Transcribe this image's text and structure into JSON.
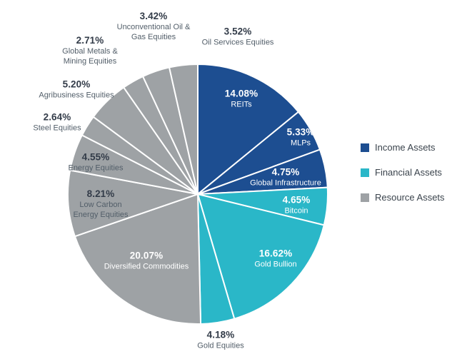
{
  "chart_data": {
    "type": "pie",
    "title": "",
    "legend_position": "right",
    "start_angle_deg": 0,
    "direction": "clockwise",
    "groups": [
      {
        "name": "Income Assets",
        "color": "#1d4e91"
      },
      {
        "name": "Financial Assets",
        "color": "#2ab7c8"
      },
      {
        "name": "Resource Assets",
        "color": "#9ea2a5"
      }
    ],
    "slices": [
      {
        "name": "REITs",
        "value": 14.08,
        "display": "14.08%",
        "group": "Income Assets"
      },
      {
        "name": "MLPs",
        "value": 5.33,
        "display": "5.33%",
        "group": "Income Assets"
      },
      {
        "name": "Global Infrastructure",
        "value": 4.75,
        "display": "4.75%",
        "group": "Income Assets"
      },
      {
        "name": "Bitcoin",
        "value": 4.65,
        "display": "4.65%",
        "group": "Financial Assets"
      },
      {
        "name": "Gold Bullion",
        "value": 16.62,
        "display": "16.62%",
        "group": "Financial Assets"
      },
      {
        "name": "Gold Equities",
        "value": 4.18,
        "display": "4.18%",
        "group": "Financial Assets"
      },
      {
        "name": "Diversified Commodities",
        "value": 20.07,
        "display": "20.07%",
        "group": "Resource Assets"
      },
      {
        "name": "Low Carbon Energy Equities",
        "value": 8.21,
        "display": "8.21%",
        "group": "Resource Assets"
      },
      {
        "name": "Energy Equities",
        "value": 4.55,
        "display": "4.55%",
        "group": "Resource Assets"
      },
      {
        "name": "Steel Equities",
        "value": 2.64,
        "display": "2.64%",
        "group": "Resource Assets"
      },
      {
        "name": "Agribusiness Equities",
        "value": 5.2,
        "display": "5.20%",
        "group": "Resource Assets"
      },
      {
        "name": "Global Metals & Mining Equities",
        "value": 2.71,
        "display": "2.71%",
        "group": "Resource Assets"
      },
      {
        "name": "Unconventional Oil & Gas Equities",
        "value": 3.42,
        "display": "3.42%",
        "group": "Resource Assets"
      },
      {
        "name": "Oil Services Equities",
        "value": 3.52,
        "display": "3.52%",
        "group": "Resource Assets"
      }
    ]
  }
}
